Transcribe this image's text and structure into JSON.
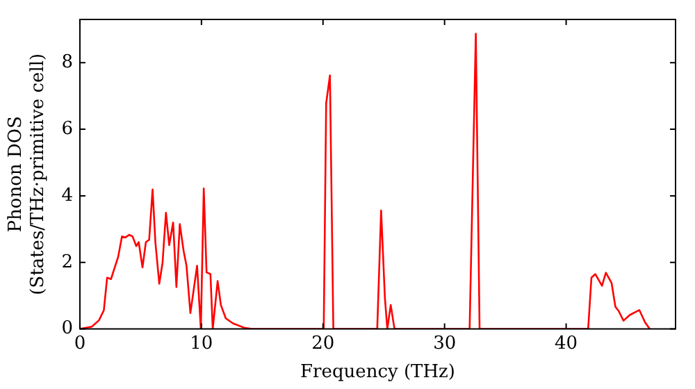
{
  "chart_data": {
    "type": "line",
    "xlabel": "Frequency (THz)",
    "ylabel": "Phonon DOS\n(States/THz·primitive cell)",
    "xlim": [
      0,
      49
    ],
    "ylim": [
      0,
      9.3
    ],
    "xticks": [
      0,
      10,
      20,
      30,
      40
    ],
    "yticks": [
      0,
      2,
      4,
      6,
      8
    ],
    "grid": false,
    "legend": false,
    "marker": "none",
    "line_style": "solid",
    "series": [
      {
        "color": "#ff0000",
        "x": [
          0,
          0.98,
          1.57,
          1.97,
          2.24,
          2.56,
          3.15,
          3.46,
          3.74,
          4.05,
          4.33,
          4.64,
          4.84,
          5.15,
          5.43,
          5.7,
          5.98,
          6.21,
          6.53,
          6.8,
          7.08,
          7.35,
          7.67,
          7.94,
          8.22,
          8.53,
          8.77,
          9.09,
          9.32,
          9.64,
          9.95,
          10.19,
          10.42,
          10.74,
          10.93,
          11.33,
          11.6,
          12.0,
          12.59,
          13.57,
          14.2,
          20.06,
          20.26,
          20.57,
          20.85,
          24.46,
          24.78,
          25.09,
          25.29,
          25.57,
          25.88,
          32.06,
          32.57,
          32.88,
          41.81,
          42.08,
          42.4,
          42.95,
          43.27,
          43.74,
          44.05,
          44.32,
          44.72,
          45.23,
          46.02,
          46.49,
          46.88
        ],
        "values": [
          0,
          0.07,
          0.26,
          0.56,
          1.54,
          1.5,
          2.17,
          2.78,
          2.75,
          2.83,
          2.78,
          2.49,
          2.61,
          1.85,
          2.61,
          2.68,
          4.19,
          2.61,
          1.36,
          1.99,
          3.49,
          2.52,
          3.2,
          1.26,
          3.15,
          2.35,
          1.9,
          0.48,
          1.07,
          1.9,
          0,
          4.22,
          1.7,
          1.65,
          0,
          1.44,
          0.72,
          0.32,
          0.17,
          0.03,
          0,
          0,
          6.78,
          7.62,
          0,
          0,
          3.56,
          0.94,
          0,
          0.72,
          0,
          0,
          8.87,
          0,
          0,
          1.54,
          1.65,
          1.3,
          1.69,
          1.38,
          0.67,
          0.54,
          0.25,
          0.42,
          0.57,
          0.2,
          0
        ]
      }
    ]
  }
}
